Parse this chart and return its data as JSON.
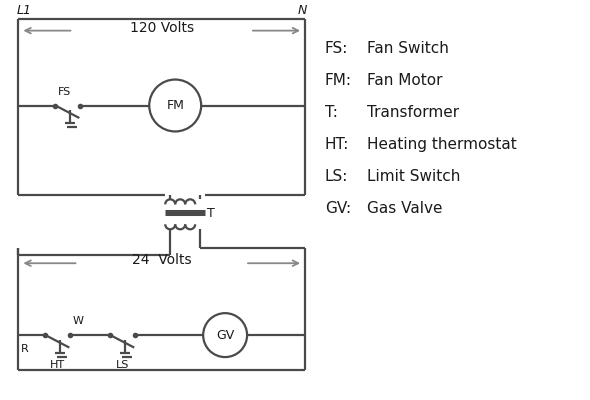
{
  "bg_color": "#ffffff",
  "line_color": "#4a4a4a",
  "text_color": "#1a1a1a",
  "arrow_color": "#888888",
  "legend_items": [
    [
      "FS:",
      "Fan Switch"
    ],
    [
      "FM:",
      "Fan Motor"
    ],
    [
      "T:",
      "Transformer"
    ],
    [
      "HT:",
      "Heating thermostat"
    ],
    [
      "LS:",
      "Limit Switch"
    ],
    [
      "GV:",
      "Gas Valve"
    ]
  ],
  "L1_label": "L1",
  "N_label": "N",
  "volts120_label": "120 Volts",
  "volts24_label": "24  Volts",
  "T_label": "T",
  "R_label": "R",
  "W_label": "W",
  "HT_label": "HT",
  "LS_label": "LS",
  "FS_label": "FS",
  "FM_label": "FM",
  "GV_label": "GV"
}
